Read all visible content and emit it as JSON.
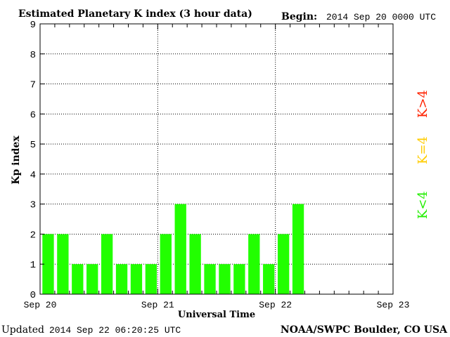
{
  "chart_data": {
    "type": "bar",
    "title": "Estimated Planetary K index (3 hour data)",
    "begin_label": "Begin:",
    "begin_value": "2014 Sep 20 0000 UTC",
    "xlabel": "Universal Time",
    "ylabel": "Kp index",
    "ylim": [
      0,
      9
    ],
    "yticks": [
      "0",
      "1",
      "2",
      "3",
      "4",
      "5",
      "6",
      "7",
      "8",
      "9"
    ],
    "xticks": [
      "Sep 20",
      "Sep 21",
      "Sep 22",
      "Sep 23"
    ],
    "x_days": 3,
    "bars_per_day": 8,
    "values": [
      2,
      2,
      1,
      1,
      2,
      1,
      1,
      1,
      2,
      3,
      2,
      1,
      1,
      1,
      2,
      1,
      2,
      3
    ],
    "bar_color": "#22ff00",
    "grid": "dotted",
    "legend": [
      {
        "label": "K<4",
        "color": "#22ee00"
      },
      {
        "label": "K=4",
        "color": "#ffcc00"
      },
      {
        "label": "K>4",
        "color": "#ff2200"
      }
    ]
  },
  "footer": {
    "updated_label": "Updated",
    "updated_value": "2014 Sep 22 06:20:25 UTC",
    "source": "NOAA/SWPC Boulder, CO USA"
  }
}
